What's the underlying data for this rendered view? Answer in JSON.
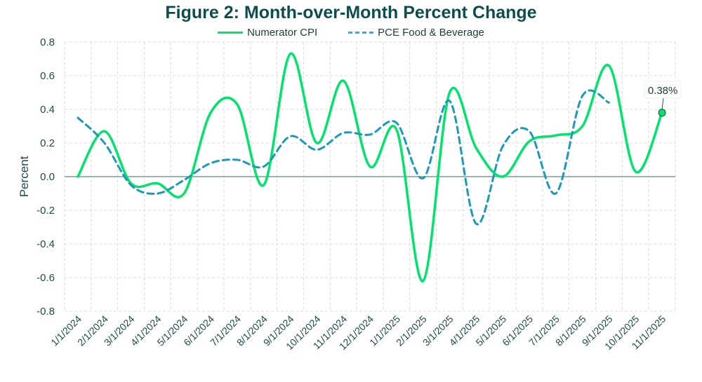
{
  "chart_data": {
    "type": "line",
    "title": "Figure 2: Month-over-Month Percent Change",
    "xlabel": "",
    "ylabel": "Percent",
    "ylim": [
      -0.8,
      0.8
    ],
    "yticks": [
      "0.8",
      "0.6",
      "0.4",
      "0.2",
      "0.0",
      "-0.2",
      "-0.4",
      "-0.6",
      "-0.8"
    ],
    "grid": true,
    "legend_position": "top",
    "categories": [
      "1/1/2024",
      "2/1/2024",
      "3/1/2024",
      "4/1/2024",
      "5/1/2024",
      "6/1/2024",
      "7/1/2024",
      "8/1/2024",
      "9/1/2024",
      "10/1/2024",
      "11/1/2024",
      "12/1/2024",
      "1/1/2025",
      "2/1/2025",
      "3/1/2025",
      "4/1/2025",
      "5/1/2025",
      "6/1/2025",
      "7/1/2025",
      "8/1/2025",
      "9/1/2025",
      "10/1/2025",
      "11/1/2025"
    ],
    "series": [
      {
        "name": "Numerator CPI",
        "style": "solid",
        "color": "#00e46c",
        "values": [
          0.0,
          0.27,
          -0.04,
          -0.04,
          -0.1,
          0.38,
          0.43,
          -0.05,
          0.73,
          0.2,
          0.57,
          0.06,
          0.28,
          -0.62,
          0.5,
          0.17,
          0.0,
          0.21,
          0.245,
          0.3,
          0.66,
          0.03,
          0.38
        ]
      },
      {
        "name": "PCE Food & Beverage",
        "style": "dashed",
        "color": "#1a9ab8",
        "values": [
          0.35,
          0.2,
          -0.05,
          -0.1,
          -0.02,
          0.08,
          0.1,
          0.06,
          0.24,
          0.16,
          0.26,
          0.25,
          0.32,
          -0.01,
          0.45,
          -0.28,
          0.18,
          0.27,
          -0.1,
          0.48,
          0.44,
          null,
          null
        ]
      }
    ],
    "annotation": {
      "series": "Numerator CPI",
      "category": "11/1/2025",
      "label": "0.38%"
    }
  }
}
